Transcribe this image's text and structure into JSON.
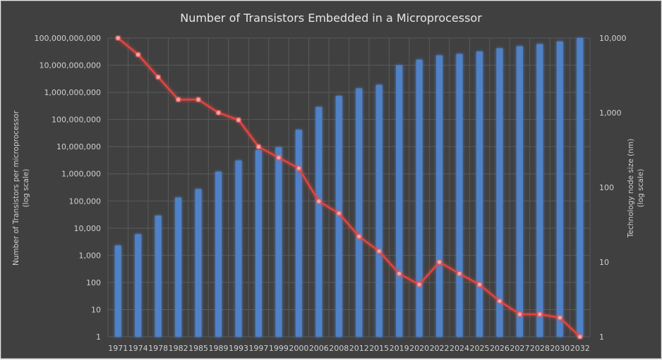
{
  "chart_data": {
    "type": "bar+line",
    "title": "Number of Transistors Embedded in a Microprocessor",
    "categories": [
      "1971",
      "1974",
      "1978",
      "1982",
      "1985",
      "1989",
      "1993",
      "1997",
      "1999",
      "2000",
      "2006",
      "2008",
      "2012",
      "2015",
      "2019",
      "2020",
      "2022",
      "2024",
      "2025",
      "2026",
      "2027",
      "2028",
      "2030",
      "2032"
    ],
    "series": [
      {
        "name": "Number of Transistors per microprocessor",
        "type": "bar",
        "axis": "left",
        "color": "#4f81c7",
        "values": [
          2300,
          6000,
          29000,
          134000,
          275000,
          1200000,
          3100000,
          7500000,
          9500000,
          42000000,
          290000000,
          740000000,
          1400000000,
          1900000000,
          10000000000,
          16000000000,
          23000000000,
          26000000000,
          32000000000,
          42000000000,
          50000000000,
          60000000000,
          75000000000,
          100000000000
        ]
      },
      {
        "name": "Technology node size (nm)",
        "type": "line",
        "axis": "right",
        "color": "#e0453f",
        "marker_color": "#f2a5a5",
        "values": [
          10000,
          6000,
          3000,
          1500,
          1500,
          1000,
          800,
          350,
          250,
          180,
          65,
          45,
          22,
          14,
          7,
          5,
          10,
          7,
          5,
          3,
          2,
          2,
          1.8,
          1
        ]
      }
    ],
    "y_left": {
      "label_line1": "Number of Transistors per  microprocessor",
      "label_line2": "(log scale)",
      "scale": "log",
      "range": [
        1,
        100000000000
      ],
      "ticks": [
        "1",
        "10",
        "100",
        "1,000",
        "10,000",
        "100,000",
        "1,000,000",
        "10,000,000",
        "100,000,000",
        "1,000,000,000",
        "10,000,000,000",
        "100,000,000,000"
      ]
    },
    "y_right": {
      "label_line1": "Technology node size (nm)",
      "label_line2": "(log scale)",
      "scale": "log",
      "range": [
        1,
        10000
      ],
      "ticks": [
        "1",
        "10",
        "100",
        "1,000",
        "10,000"
      ]
    },
    "grid": true,
    "legend": "none",
    "background": "#404040"
  }
}
